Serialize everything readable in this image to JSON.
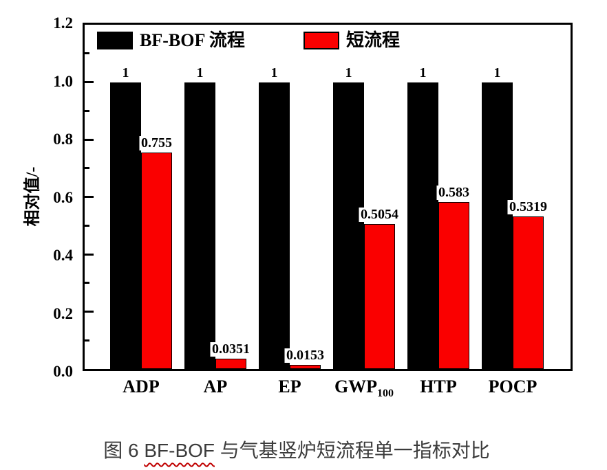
{
  "figure": {
    "caption_prefix": "图 6 ",
    "caption_underlined": "BF-BOF",
    "caption_suffix": " 与气基竖炉短流程单一指标对比"
  },
  "colors": {
    "bar_black": "#000000",
    "bar_red": "#fa0000",
    "caption_text": "#3b3b3b",
    "squiggle_red": "#c00000",
    "axis_black": "#000000"
  },
  "chart_data": {
    "type": "bar",
    "categories": [
      {
        "text": "ADP",
        "sub": ""
      },
      {
        "text": "AP",
        "sub": ""
      },
      {
        "text": "EP",
        "sub": ""
      },
      {
        "text": "GWP",
        "sub": "100"
      },
      {
        "text": "HTP",
        "sub": ""
      },
      {
        "text": "POCP",
        "sub": ""
      }
    ],
    "series": [
      {
        "key": "bf-bof",
        "name": "BF-BOF 流程",
        "color": "#000000",
        "values": [
          1,
          1,
          1,
          1,
          1,
          1
        ],
        "value_labels": [
          "1",
          "1",
          "1",
          "1",
          "1",
          "1"
        ]
      },
      {
        "key": "short",
        "name": "短流程",
        "color": "#fa0000",
        "values": [
          0.755,
          0.0351,
          0.0153,
          0.5054,
          0.583,
          0.5319
        ],
        "value_labels": [
          "0.755",
          "0.0351",
          "0.0153",
          "0.5054",
          "0.583",
          "0.5319"
        ]
      }
    ],
    "ylabel": "相对值/-",
    "xlabel": "",
    "ylim": [
      0,
      1.2
    ],
    "ytick_labels": [
      "0.0",
      "0.2",
      "0.4",
      "0.6",
      "0.8",
      "1.0",
      "1.2"
    ],
    "ytick_step": 0.2,
    "minor_tick_step": 0.1,
    "grid": false,
    "legend_position": "top-inside"
  }
}
